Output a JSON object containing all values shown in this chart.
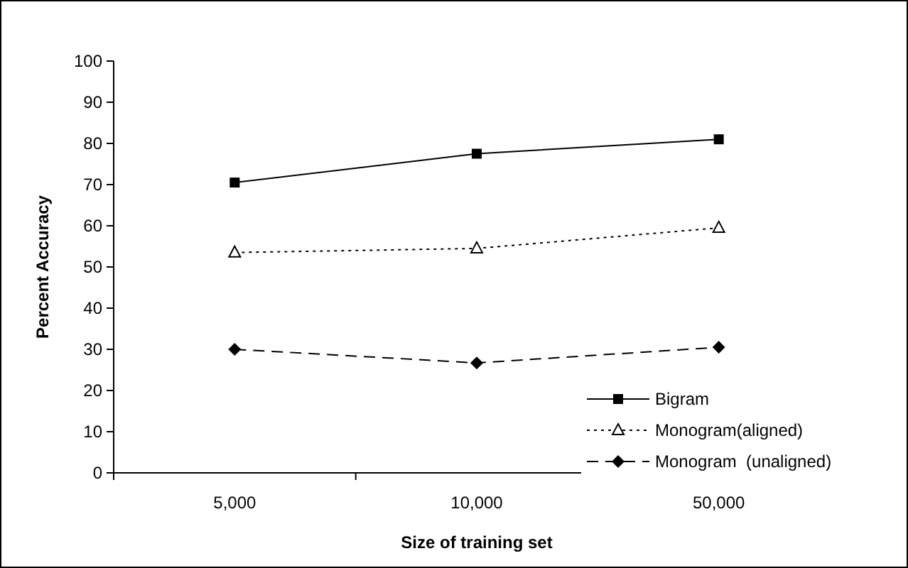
{
  "chart_data": {
    "type": "line",
    "xlabel": "Size of training set",
    "ylabel": "Percent Accuracy",
    "categories": [
      "5,000",
      "10,000",
      "50,000"
    ],
    "ylim": [
      0,
      100
    ],
    "yticks": [
      0,
      10,
      20,
      30,
      40,
      50,
      60,
      70,
      80,
      90,
      100
    ],
    "grid": false,
    "legend": "bottom right",
    "series": [
      {
        "name": "Bigram",
        "color": "#000000",
        "values": [
          70.5,
          77.5,
          81
        ],
        "marker": "square",
        "line_style": "solid"
      },
      {
        "name": "Monogram(aligned)",
        "color": "#000000",
        "values": [
          53.5,
          54.5,
          59.5
        ],
        "marker": "triangle",
        "line_style": "dotted"
      },
      {
        "name": "Monogram  (unaligned)",
        "color": "#000000",
        "values": [
          30,
          26.7,
          30.5
        ],
        "marker": "diamond",
        "line_style": "dashed"
      }
    ]
  }
}
